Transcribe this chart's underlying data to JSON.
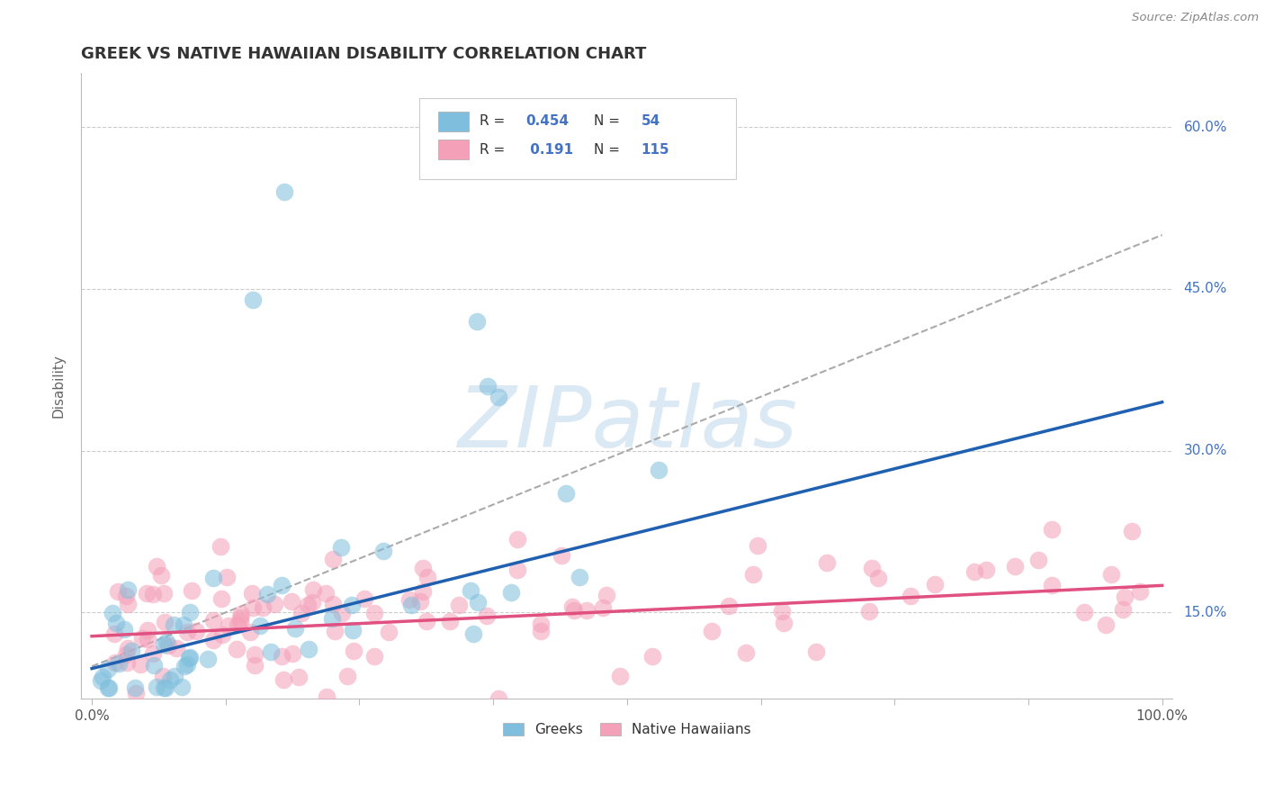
{
  "title": "GREEK VS NATIVE HAWAIIAN DISABILITY CORRELATION CHART",
  "source": "Source: ZipAtlas.com",
  "ylabel": "Disability",
  "greek_color": "#7fbfdd",
  "hawaiian_color": "#f4a0b8",
  "greek_line_color": "#2060b0",
  "hawaiian_line_color": "#e05080",
  "dash_color": "#aaaaaa",
  "greek_R": 0.454,
  "greek_N": 54,
  "hawaiian_R": 0.191,
  "hawaiian_N": 115,
  "watermark": "ZIPatlas",
  "background_color": "#ffffff",
  "grid_color": "#cccccc",
  "ytick_color": "#4472c4",
  "title_color": "#333333"
}
